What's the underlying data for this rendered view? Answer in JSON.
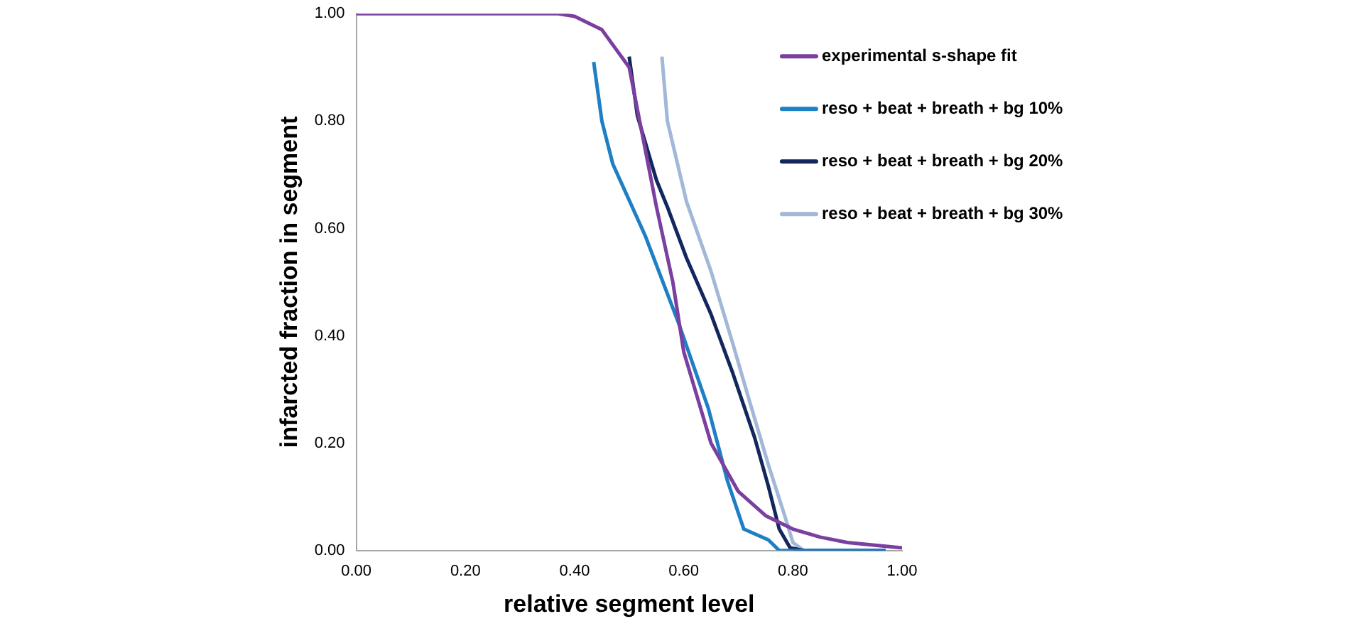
{
  "chart_data": {
    "type": "line",
    "xlabel": "relative segment level",
    "ylabel": "infarcted fraction in segment",
    "xlim": [
      0,
      1
    ],
    "ylim": [
      0,
      1
    ],
    "xticks": [
      {
        "value": 0,
        "label": "0.00"
      },
      {
        "value": 0.2,
        "label": "0.20"
      },
      {
        "value": 0.4,
        "label": "0.40"
      },
      {
        "value": 0.6,
        "label": "0.60"
      },
      {
        "value": 0.8,
        "label": "0.80"
      },
      {
        "value": 1,
        "label": "1.00"
      }
    ],
    "yticks": [
      {
        "value": 0,
        "label": "0.00"
      },
      {
        "value": 0.2,
        "label": "0.20"
      },
      {
        "value": 0.4,
        "label": "0.40"
      },
      {
        "value": 0.6,
        "label": "0.60"
      },
      {
        "value": 0.8,
        "label": "0.80"
      },
      {
        "value": 1,
        "label": "1.00"
      }
    ],
    "grid": false,
    "legend": "top right",
    "marker": "none",
    "line_style": "solid",
    "series": [
      {
        "name": "experimental s-shape fit",
        "color": "#7b3fa0",
        "x": [
          0,
          0.1,
          0.2,
          0.3,
          0.37,
          0.4,
          0.45,
          0.5,
          0.55,
          0.58,
          0.6,
          0.65,
          0.7,
          0.75,
          0.8,
          0.85,
          0.9,
          0.95,
          1
        ],
        "values": [
          1,
          1,
          1,
          1,
          1,
          0.995,
          0.97,
          0.9,
          0.64,
          0.5,
          0.37,
          0.2,
          0.11,
          0.065,
          0.04,
          0.025,
          0.015,
          0.01,
          0.005
        ]
      },
      {
        "name": "reso + beat + breath + bg 10%",
        "color": "#1f7fc4",
        "x": [
          0.435,
          0.45,
          0.47,
          0.53,
          0.59,
          0.645,
          0.68,
          0.71,
          0.755,
          0.775,
          0.97
        ],
        "values": [
          0.91,
          0.8,
          0.72,
          0.585,
          0.425,
          0.265,
          0.13,
          0.04,
          0.02,
          0,
          0
        ]
      },
      {
        "name": "reso + beat + breath + bg 20%",
        "color": "#12275e",
        "x": [
          0.5,
          0.515,
          0.55,
          0.57,
          0.605,
          0.65,
          0.69,
          0.73,
          0.755,
          0.775,
          0.795,
          0.82,
          0.97
        ],
        "values": [
          0.92,
          0.81,
          0.69,
          0.64,
          0.545,
          0.44,
          0.33,
          0.21,
          0.12,
          0.04,
          0.005,
          0,
          0
        ]
      },
      {
        "name": "reso + beat + breath + bg 30%",
        "color": "#a3b8d8",
        "x": [
          0.56,
          0.57,
          0.605,
          0.65,
          0.69,
          0.72,
          0.755,
          0.785,
          0.8,
          0.82,
          0.97
        ],
        "values": [
          0.92,
          0.8,
          0.65,
          0.52,
          0.385,
          0.28,
          0.16,
          0.065,
          0.015,
          0,
          0
        ]
      }
    ]
  }
}
